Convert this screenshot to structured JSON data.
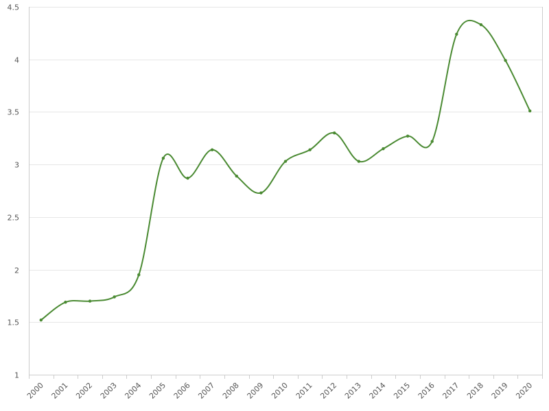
{
  "chart_data": {
    "type": "line",
    "title": "",
    "xlabel": "",
    "ylabel": "",
    "x": [
      "2000",
      "2001",
      "2002",
      "2003",
      "2004",
      "2005",
      "2006",
      "2007",
      "2008",
      "2009",
      "2010",
      "2011",
      "2012",
      "2013",
      "2014",
      "2015",
      "2016",
      "2017",
      "2018",
      "2019",
      "2020"
    ],
    "series": [
      {
        "values": [
          1.52,
          1.69,
          1.7,
          1.74,
          1.95,
          3.06,
          2.87,
          3.14,
          2.89,
          2.73,
          3.03,
          3.14,
          3.3,
          3.03,
          3.15,
          3.27,
          3.22,
          4.24,
          4.33,
          3.99,
          3.51
        ],
        "color": "#4a8a32"
      }
    ],
    "ylim": [
      1,
      4.5
    ],
    "yticks": [
      "1",
      "1.5",
      "2",
      "2.5",
      "3",
      "3.5",
      "4",
      "4.5"
    ],
    "grid": true,
    "smooth": true,
    "markers": true,
    "legend": "none"
  }
}
